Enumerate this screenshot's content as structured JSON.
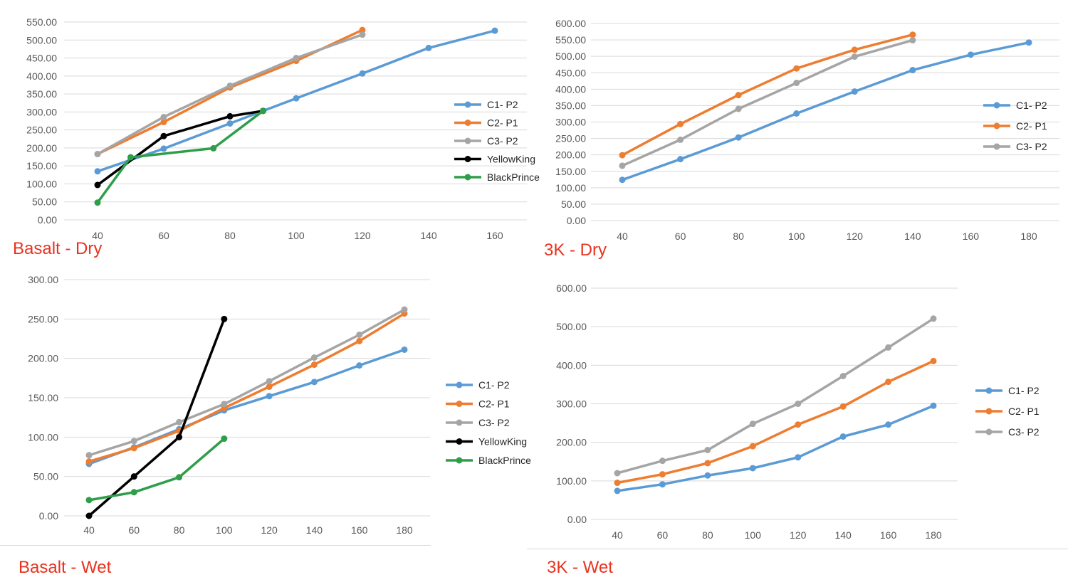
{
  "colors": {
    "c1": "#5b9bd5",
    "c2": "#ed7d31",
    "c3": "#a5a5a5",
    "yellowking": "#000000",
    "blackprince": "#2e9e4a",
    "grid": "#d9d9d9",
    "tick_text": "#595959",
    "title_red": "#e8321e"
  },
  "chart_data": [
    {
      "type": "line",
      "title": "Basalt - Dry",
      "x": [
        40,
        60,
        80,
        100,
        120,
        140,
        160
      ],
      "x_ticks": [
        "40",
        "60",
        "80",
        "100",
        "120",
        "140",
        "160"
      ],
      "y_ticks": [
        "0.00",
        "50.00",
        "100.00",
        "150.00",
        "200.00",
        "250.00",
        "300.00",
        "350.00",
        "400.00",
        "450.00",
        "500.00",
        "550.00"
      ],
      "ylim": [
        0,
        550
      ],
      "grid": true,
      "legend_position": "right",
      "series": [
        {
          "name": "C1- P2",
          "color_key": "c1",
          "points": [
            [
              40,
              135
            ],
            [
              60,
              198
            ],
            [
              80,
              268
            ],
            [
              100,
              338
            ],
            [
              120,
              407
            ],
            [
              140,
              478
            ],
            [
              160,
              526
            ]
          ]
        },
        {
          "name": "C2- P1",
          "color_key": "c2",
          "points": [
            [
              40,
              183
            ],
            [
              60,
              272
            ],
            [
              80,
              368
            ],
            [
              100,
              442
            ],
            [
              120,
              528
            ]
          ]
        },
        {
          "name": "C3- P2",
          "color_key": "c3",
          "points": [
            [
              40,
              183
            ],
            [
              60,
              286
            ],
            [
              80,
              373
            ],
            [
              100,
              450
            ],
            [
              120,
              515
            ]
          ]
        },
        {
          "name": "YellowKing",
          "color_key": "yellowking",
          "points": [
            [
              40,
              97
            ],
            [
              60,
              233
            ],
            [
              80,
              288
            ],
            [
              90,
              303
            ]
          ]
        },
        {
          "name": "BlackPrince",
          "color_key": "blackprince",
          "points": [
            [
              40,
              48
            ],
            [
              50,
              174
            ],
            [
              75,
              199
            ],
            [
              90,
              303
            ]
          ]
        }
      ]
    },
    {
      "type": "line",
      "title": "3K - Dry",
      "x": [
        40,
        60,
        80,
        100,
        120,
        140,
        160,
        180
      ],
      "x_ticks": [
        "40",
        "60",
        "80",
        "100",
        "120",
        "140",
        "160",
        "180"
      ],
      "y_ticks": [
        "0.00",
        "50.00",
        "100.00",
        "150.00",
        "200.00",
        "250.00",
        "300.00",
        "350.00",
        "400.00",
        "450.00",
        "500.00",
        "550.00",
        "600.00"
      ],
      "ylim": [
        0,
        600
      ],
      "grid": true,
      "legend_position": "right",
      "series": [
        {
          "name": "C1- P2",
          "color_key": "c1",
          "points": [
            [
              40,
              124
            ],
            [
              60,
              187
            ],
            [
              80,
              253
            ],
            [
              100,
              326
            ],
            [
              120,
              393
            ],
            [
              140,
              458
            ],
            [
              160,
              505
            ],
            [
              180,
              542
            ]
          ]
        },
        {
          "name": "C2- P1",
          "color_key": "c2",
          "points": [
            [
              40,
              199
            ],
            [
              60,
              294
            ],
            [
              80,
              382
            ],
            [
              100,
              463
            ],
            [
              120,
              520
            ],
            [
              140,
              566
            ]
          ]
        },
        {
          "name": "C3- P2",
          "color_key": "c3",
          "points": [
            [
              40,
              167
            ],
            [
              60,
              246
            ],
            [
              80,
              340
            ],
            [
              100,
              419
            ],
            [
              120,
              499
            ],
            [
              140,
              549
            ]
          ]
        }
      ]
    },
    {
      "type": "line",
      "title": "Basalt - Wet",
      "x": [
        40,
        60,
        80,
        100,
        120,
        140,
        160,
        180
      ],
      "x_ticks": [
        "40",
        "60",
        "80",
        "100",
        "120",
        "140",
        "160",
        "180"
      ],
      "y_ticks": [
        "0.00",
        "50.00",
        "100.00",
        "150.00",
        "200.00",
        "250.00",
        "300.00"
      ],
      "ylim": [
        0,
        300
      ],
      "grid": true,
      "legend_position": "right",
      "series": [
        {
          "name": "C1- P2",
          "color_key": "c1",
          "points": [
            [
              40,
              66
            ],
            [
              60,
              87
            ],
            [
              80,
              110
            ],
            [
              100,
              134
            ],
            [
              120,
              152
            ],
            [
              140,
              170
            ],
            [
              160,
              191
            ],
            [
              180,
              211
            ]
          ]
        },
        {
          "name": "C2- P1",
          "color_key": "c2",
          "points": [
            [
              40,
              69
            ],
            [
              60,
              86
            ],
            [
              80,
              108
            ],
            [
              100,
              137
            ],
            [
              120,
              164
            ],
            [
              140,
              192
            ],
            [
              160,
              222
            ],
            [
              180,
              257
            ]
          ]
        },
        {
          "name": "C3- P2",
          "color_key": "c3",
          "points": [
            [
              40,
              77
            ],
            [
              60,
              95
            ],
            [
              80,
              119
            ],
            [
              100,
              142
            ],
            [
              120,
              171
            ],
            [
              140,
              201
            ],
            [
              160,
              230
            ],
            [
              180,
              262
            ]
          ]
        },
        {
          "name": "YellowKing",
          "color_key": "yellowking",
          "points": [
            [
              40,
              0
            ],
            [
              60,
              50
            ],
            [
              80,
              100
            ],
            [
              100,
              250
            ]
          ]
        },
        {
          "name": "BlackPrince",
          "color_key": "blackprince",
          "points": [
            [
              40,
              20
            ],
            [
              60,
              30
            ],
            [
              80,
              49
            ],
            [
              100,
              98
            ]
          ]
        }
      ]
    },
    {
      "type": "line",
      "title": "3K - Wet",
      "x": [
        40,
        60,
        80,
        100,
        120,
        140,
        160,
        180
      ],
      "x_ticks": [
        "40",
        "60",
        "80",
        "100",
        "120",
        "140",
        "160",
        "180"
      ],
      "y_ticks": [
        "0.00",
        "100.00",
        "200.00",
        "300.00",
        "400.00",
        "500.00",
        "600.00"
      ],
      "ylim": [
        0,
        600
      ],
      "grid": true,
      "legend_position": "right",
      "series": [
        {
          "name": "C1- P2",
          "color_key": "c1",
          "points": [
            [
              40,
              74
            ],
            [
              60,
              91
            ],
            [
              80,
              114
            ],
            [
              100,
              133
            ],
            [
              120,
              161
            ],
            [
              140,
              215
            ],
            [
              160,
              246
            ],
            [
              180,
              295
            ]
          ]
        },
        {
          "name": "C2- P1",
          "color_key": "c2",
          "points": [
            [
              40,
              95
            ],
            [
              60,
              117
            ],
            [
              80,
              146
            ],
            [
              100,
              190
            ],
            [
              120,
              246
            ],
            [
              140,
              293
            ],
            [
              160,
              357
            ],
            [
              180,
              411
            ]
          ]
        },
        {
          "name": "C3- P2",
          "color_key": "c3",
          "points": [
            [
              40,
              120
            ],
            [
              60,
              152
            ],
            [
              80,
              180
            ],
            [
              100,
              248
            ],
            [
              120,
              300
            ],
            [
              140,
              372
            ],
            [
              160,
              446
            ],
            [
              180,
              521
            ]
          ]
        }
      ]
    }
  ]
}
